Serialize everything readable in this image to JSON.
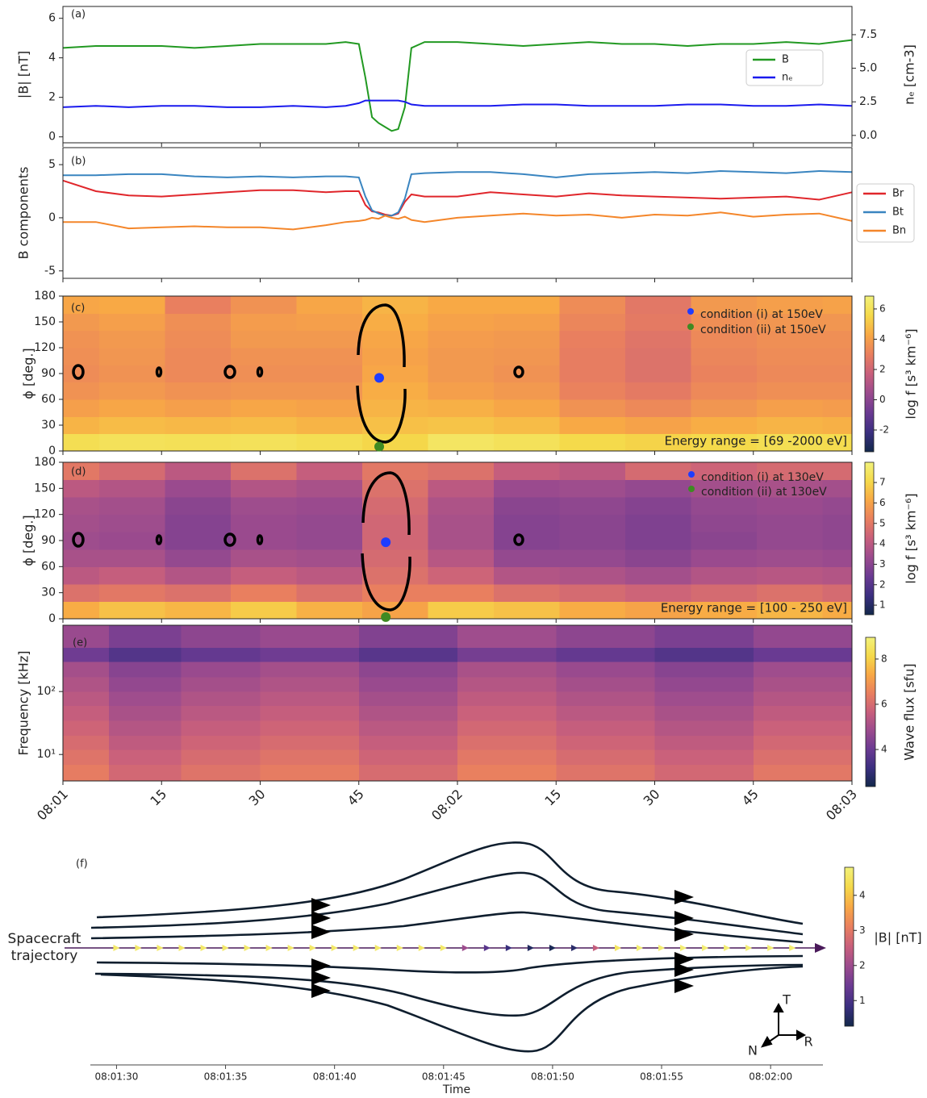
{
  "chart_data": [
    {
      "type": "line",
      "label": "(a)",
      "ylabel": "|B| [nT]",
      "y2label": "nₑ [cm-3]",
      "x": [
        0,
        5,
        10,
        15,
        20,
        25,
        30,
        35,
        40,
        43,
        45,
        46,
        47,
        48,
        49,
        50,
        51,
        52,
        53,
        55,
        60,
        65,
        70,
        75,
        80,
        85,
        90,
        95,
        100,
        105,
        110,
        115,
        120
      ],
      "xlim": [
        0,
        120
      ],
      "ylim": [
        -0.3,
        6.6
      ],
      "yticks": [
        0,
        2,
        4,
        6
      ],
      "y2lim": [
        -0.55,
        9.6
      ],
      "y2ticks": [
        {
          "value": 0,
          "label": "0.0"
        },
        2.5,
        {
          "value": 5,
          "label": "5.0"
        },
        7.5
      ],
      "legend": "right",
      "series": [
        {
          "name": "B",
          "color": "#229922",
          "values": [
            4.5,
            4.6,
            4.6,
            4.6,
            4.5,
            4.6,
            4.7,
            4.7,
            4.7,
            4.8,
            4.7,
            3.0,
            1.0,
            0.7,
            0.5,
            0.3,
            0.4,
            1.5,
            4.5,
            4.8,
            4.8,
            4.7,
            4.6,
            4.7,
            4.8,
            4.7,
            4.7,
            4.6,
            4.7,
            4.7,
            4.8,
            4.7,
            4.9
          ]
        },
        {
          "name": "nₑ",
          "color": "#1a1aee",
          "axis": "y2",
          "values": [
            2.1,
            2.2,
            2.1,
            2.2,
            2.2,
            2.1,
            2.1,
            2.2,
            2.1,
            2.2,
            2.4,
            2.6,
            2.6,
            2.6,
            2.6,
            2.6,
            2.6,
            2.5,
            2.3,
            2.2,
            2.2,
            2.2,
            2.3,
            2.3,
            2.2,
            2.2,
            2.2,
            2.3,
            2.3,
            2.2,
            2.2,
            2.3,
            2.2
          ]
        }
      ]
    },
    {
      "type": "line",
      "label": "(b)",
      "ylabel": "B components",
      "x": [
        0,
        5,
        10,
        15,
        20,
        25,
        30,
        35,
        40,
        43,
        45,
        46,
        47,
        48,
        49,
        50,
        51,
        52,
        53,
        55,
        60,
        65,
        70,
        75,
        80,
        85,
        90,
        95,
        100,
        105,
        110,
        115,
        120
      ],
      "xlim": [
        0,
        120
      ],
      "ylim": [
        -5.7,
        6.6
      ],
      "yticks": [
        -5,
        0,
        5
      ],
      "legend": "outside right",
      "series": [
        {
          "name": "Br",
          "color": "#e0262b",
          "values": [
            3.5,
            2.5,
            2.1,
            2.0,
            2.2,
            2.4,
            2.6,
            2.6,
            2.4,
            2.5,
            2.5,
            1.2,
            0.6,
            0.5,
            0.3,
            0.2,
            0.4,
            1.5,
            2.2,
            2.0,
            2.0,
            2.4,
            2.2,
            2.0,
            2.3,
            2.1,
            2.0,
            1.9,
            1.8,
            1.9,
            2.0,
            1.7,
            2.4
          ]
        },
        {
          "name": "Bt",
          "color": "#3a85c0",
          "values": [
            4.0,
            4.0,
            4.1,
            4.1,
            3.9,
            3.8,
            3.9,
            3.8,
            3.9,
            3.9,
            3.8,
            2.0,
            0.7,
            0.4,
            0.2,
            0.2,
            0.5,
            1.8,
            4.1,
            4.2,
            4.3,
            4.3,
            4.1,
            3.8,
            4.1,
            4.2,
            4.3,
            4.2,
            4.4,
            4.3,
            4.2,
            4.4,
            4.3
          ]
        },
        {
          "name": "Bn",
          "color": "#f4862a",
          "values": [
            -0.4,
            -0.4,
            -1.0,
            -0.9,
            -0.8,
            -0.9,
            -0.9,
            -1.1,
            -0.7,
            -0.4,
            -0.3,
            -0.2,
            0.0,
            -0.1,
            0.2,
            0.0,
            -0.1,
            0.1,
            -0.2,
            -0.4,
            0.0,
            0.2,
            0.4,
            0.2,
            0.3,
            0.0,
            0.3,
            0.2,
            0.5,
            0.1,
            0.3,
            0.4,
            -0.3
          ]
        }
      ]
    },
    {
      "type": "heatmap",
      "label": "(c)",
      "ylabel": "ϕ  [deg.]",
      "clabel": "log f  [s³ km⁻⁶]",
      "annotation": "Energy range = [69 -2000 eV]",
      "xlim": [
        0,
        120
      ],
      "ylim": [
        0,
        180
      ],
      "yticks": [
        0,
        30,
        60,
        90,
        120,
        150,
        180
      ],
      "clim": [
        -3.44,
        6.85
      ],
      "cticks": [
        -2,
        0,
        2,
        4,
        6
      ],
      "colormap": [
        "#12284a",
        "#3b2f80",
        "#6a3a92",
        "#9b4b8e",
        "#c85f7c",
        "#e97f5f",
        "#f8a845",
        "#f5d94a",
        "#f2f27a"
      ],
      "x_bins": [
        0,
        5.5,
        15.5,
        25.5,
        35.5,
        45.5,
        55.5,
        65.5,
        75.5,
        85.5,
        95.5,
        105.5,
        115.5,
        120
      ],
      "y_bins": [
        0,
        20,
        40,
        60,
        80,
        100,
        120,
        140,
        160,
        180
      ],
      "values": [
        [
          5.8,
          4.6,
          4.0,
          3.6,
          3.4,
          3.5,
          3.6,
          3.8,
          4.2
        ],
        [
          6.0,
          4.8,
          4.2,
          3.8,
          3.6,
          3.7,
          3.8,
          4.0,
          4.3
        ],
        [
          5.9,
          4.7,
          4.0,
          3.6,
          3.3,
          3.3,
          3.4,
          3.5,
          3.0
        ],
        [
          6.0,
          4.8,
          4.2,
          3.7,
          3.5,
          3.6,
          3.8,
          3.9,
          3.6
        ],
        [
          5.8,
          4.6,
          4.1,
          3.7,
          3.5,
          3.6,
          3.8,
          4.0,
          4.2
        ],
        [
          5.5,
          4.9,
          4.6,
          4.4,
          4.2,
          4.1,
          4.2,
          4.4,
          4.6
        ],
        [
          6.2,
          5.0,
          4.5,
          4.0,
          3.8,
          3.8,
          3.9,
          4.1,
          4.3
        ],
        [
          6.0,
          4.8,
          4.2,
          3.8,
          3.6,
          3.7,
          3.8,
          4.0,
          4.3
        ],
        [
          5.6,
          4.3,
          3.6,
          3.1,
          2.9,
          2.9,
          3.0,
          3.2,
          3.4
        ],
        [
          5.4,
          4.1,
          3.3,
          2.8,
          2.5,
          2.5,
          2.6,
          2.8,
          2.7
        ],
        [
          5.6,
          4.4,
          3.7,
          3.3,
          3.1,
          3.2,
          3.3,
          3.5,
          3.8
        ],
        [
          5.8,
          4.6,
          4.0,
          3.5,
          3.3,
          3.4,
          3.5,
          3.7,
          4.0
        ],
        [
          5.7,
          4.5,
          3.9,
          3.5,
          3.3,
          3.4,
          3.5,
          3.7,
          4.1
        ]
      ],
      "markers": [
        {
          "name": "condition (i) at 150eV",
          "color": "#1f3cff",
          "x": 48.1,
          "y": 85
        },
        {
          "name": "condition (ii) at 150eV",
          "color": "#3f8a22",
          "x": 48.1,
          "y": 5
        }
      ]
    },
    {
      "type": "heatmap",
      "label": "(d)",
      "ylabel": "ϕ  [deg.]",
      "clabel": "log f  [s³ km⁻⁶]",
      "annotation": "Energy range = [100 - 250 eV]",
      "xlim": [
        0,
        120
      ],
      "ylim": [
        0,
        180
      ],
      "yticks": [
        0,
        30,
        60,
        90,
        120,
        150,
        180
      ],
      "clim": [
        0.53,
        7.99
      ],
      "cticks": [
        1,
        2,
        3,
        4,
        5,
        6,
        7
      ],
      "colormap": [
        "#12284a",
        "#3b2f80",
        "#6a3a92",
        "#9b4b8e",
        "#c85f7c",
        "#e97f5f",
        "#f8a845",
        "#f5d94a",
        "#f2f27a"
      ],
      "x_bins": [
        0,
        5.5,
        15.5,
        25.5,
        35.5,
        45.5,
        55.5,
        65.5,
        75.5,
        85.5,
        95.5,
        105.5,
        115.5,
        120
      ],
      "y_bins": [
        0,
        20,
        40,
        60,
        80,
        100,
        120,
        140,
        160,
        180
      ],
      "values": [
        [
          6.2,
          4.8,
          4.0,
          3.6,
          3.4,
          3.5,
          3.6,
          4.0,
          5.0
        ],
        [
          6.6,
          5.0,
          4.2,
          3.6,
          3.3,
          3.4,
          3.5,
          3.8,
          4.6
        ],
        [
          6.4,
          4.8,
          3.8,
          3.2,
          2.9,
          2.9,
          3.0,
          3.3,
          4.0
        ],
        [
          6.8,
          5.2,
          4.2,
          3.6,
          3.3,
          3.3,
          3.4,
          3.8,
          4.8
        ],
        [
          6.3,
          4.8,
          4.0,
          3.5,
          3.2,
          3.2,
          3.3,
          3.6,
          4.2
        ],
        [
          6.0,
          5.2,
          4.8,
          4.6,
          4.5,
          4.5,
          4.6,
          4.8,
          5.0
        ],
        [
          6.8,
          5.2,
          4.4,
          3.9,
          3.6,
          3.6,
          3.7,
          4.0,
          4.8
        ],
        [
          6.6,
          4.8,
          3.8,
          3.2,
          2.9,
          2.9,
          3.0,
          3.3,
          4.2
        ],
        [
          6.2,
          4.6,
          3.7,
          3.2,
          3.0,
          3.0,
          3.1,
          3.4,
          4.0
        ],
        [
          6.0,
          4.4,
          3.5,
          3.0,
          2.8,
          2.8,
          2.9,
          3.2,
          4.6
        ],
        [
          6.2,
          4.6,
          3.8,
          3.3,
          3.0,
          3.1,
          3.2,
          3.5,
          4.4
        ],
        [
          6.4,
          4.8,
          3.9,
          3.4,
          3.2,
          3.2,
          3.3,
          3.6,
          4.6
        ],
        [
          6.2,
          4.6,
          3.8,
          3.3,
          3.1,
          3.1,
          3.2,
          3.5,
          4.6
        ]
      ],
      "markers": [
        {
          "name": "condition (i) at 130eV",
          "color": "#1f3cff",
          "x": 49.1,
          "y": 88
        },
        {
          "name": "condition (ii) at 130eV",
          "color": "#3f8a22",
          "x": 49.1,
          "y": 2
        }
      ]
    },
    {
      "type": "heatmap",
      "label": "(e)",
      "ylabel": "Frequency [kHz]",
      "clabel": "Wave flux [sfu]",
      "xlim": [
        0,
        120
      ],
      "ylog": true,
      "ylim": [
        3.8,
        1130
      ],
      "yticks": [
        {
          "value": 10,
          "label": "10¹"
        },
        {
          "value": 100,
          "label": "10²"
        }
      ],
      "xticks": [
        {
          "value": 0,
          "label": "08:01"
        },
        15,
        30,
        45,
        {
          "value": 60,
          "label": "08:02"
        },
        {
          "value": 75,
          "label": "15"
        },
        {
          "value": 90,
          "label": "30"
        },
        {
          "value": 105,
          "label": "45"
        },
        {
          "value": 120,
          "label": "08:03"
        }
      ],
      "clim": [
        2.36,
        8.96
      ],
      "cticks": [
        4,
        6,
        8
      ],
      "colormap": [
        "#12284a",
        "#3b2f80",
        "#6a3a92",
        "#9b4b8e",
        "#c85f7c",
        "#e97f5f",
        "#f8a845",
        "#f5d94a",
        "#f2f27a"
      ],
      "x_bins": [
        0,
        7,
        18,
        30,
        45,
        60,
        75,
        90,
        105,
        120
      ],
      "y_bins": [
        3.8,
        7,
        12,
        20,
        35,
        60,
        100,
        170,
        300,
        500,
        1130
      ],
      "values": [
        [
          6.4,
          6.2,
          6.0,
          5.8,
          5.6,
          5.4,
          5.2,
          5.0,
          4.1,
          4.8
        ],
        [
          5.9,
          5.7,
          5.5,
          5.3,
          5.1,
          4.9,
          4.7,
          4.5,
          3.6,
          4.3
        ],
        [
          6.2,
          6.0,
          5.8,
          5.6,
          5.4,
          5.2,
          5.0,
          4.8,
          3.9,
          4.6
        ],
        [
          6.4,
          6.2,
          6.0,
          5.8,
          5.6,
          5.4,
          5.2,
          5.0,
          4.1,
          4.8
        ],
        [
          6.0,
          5.8,
          5.6,
          5.4,
          5.2,
          5.0,
          4.8,
          4.6,
          3.7,
          4.4
        ],
        [
          6.5,
          6.3,
          6.1,
          5.9,
          5.7,
          5.5,
          5.3,
          5.1,
          4.2,
          4.9
        ],
        [
          6.2,
          6.0,
          5.8,
          5.6,
          5.4,
          5.2,
          5.0,
          4.8,
          3.9,
          4.6
        ],
        [
          5.9,
          5.7,
          5.5,
          5.3,
          5.1,
          4.9,
          4.7,
          4.5,
          3.6,
          4.3
        ],
        [
          6.3,
          6.1,
          5.9,
          5.7,
          5.5,
          5.3,
          5.1,
          4.9,
          4.0,
          4.7
        ]
      ]
    },
    {
      "type": "trajectory",
      "label": "(f)",
      "annotation_lines": [
        "Spacecraft",
        "trajectory"
      ],
      "axes_labels": [
        "T",
        "R",
        "N"
      ],
      "xlabel": "Time",
      "clabel": "|B| [nT]",
      "xlim": [
        28.8,
        62.4
      ],
      "xticks": [
        {
          "value": 30,
          "label": "08:01:30"
        },
        {
          "value": 35,
          "label": "08:01:35"
        },
        {
          "value": 40,
          "label": "08:01:40"
        },
        {
          "value": 45,
          "label": "08:01:45"
        },
        {
          "value": 50,
          "label": "08:01:50"
        },
        {
          "value": 55,
          "label": "08:01:55"
        },
        {
          "value": 60,
          "label": "08:02:00"
        }
      ],
      "clim": [
        0.27,
        4.8
      ],
      "cticks": [
        1,
        2,
        3,
        4
      ],
      "colormap": [
        "#12284a",
        "#3b2f80",
        "#6a3a92",
        "#9b4b8e",
        "#c85f7c",
        "#e97f5f",
        "#f8a845",
        "#f5d94a",
        "#f2f27a"
      ],
      "x": [
        30,
        31,
        32,
        33,
        34,
        35,
        36,
        37,
        38,
        39,
        40,
        41,
        42,
        43,
        44,
        45,
        46,
        47,
        48,
        49,
        50,
        51,
        52,
        53,
        54,
        55,
        56,
        57,
        58,
        59,
        60,
        61
      ],
      "values": [
        4.6,
        4.6,
        4.6,
        4.6,
        4.6,
        4.6,
        4.6,
        4.6,
        4.6,
        4.6,
        4.6,
        4.6,
        4.6,
        4.6,
        4.6,
        4.6,
        2.0,
        1.2,
        0.8,
        0.5,
        0.4,
        0.6,
        2.5,
        4.5,
        4.7,
        4.7,
        4.7,
        4.7,
        4.7,
        4.7,
        4.7,
        4.7
      ]
    }
  ]
}
